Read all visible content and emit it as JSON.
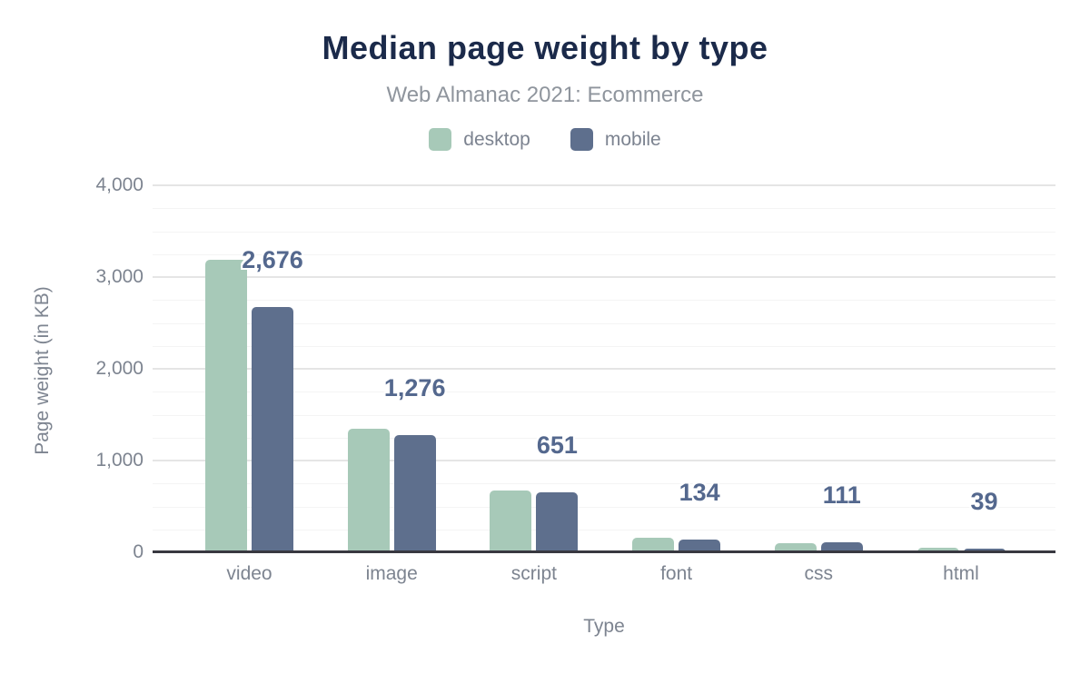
{
  "title": "Median page weight by type",
  "subtitle": "Web Almanac 2021: Ecommerce",
  "legend": {
    "items": [
      {
        "label": "desktop",
        "color": "#a7c9b8"
      },
      {
        "label": "mobile",
        "color": "#5e6f8d"
      }
    ]
  },
  "axes": {
    "x_title": "Type",
    "y_title": "Page weight (in KB)",
    "y_ticks": [
      "0",
      "1,000",
      "2,000",
      "3,000",
      "4,000"
    ]
  },
  "chart_data": {
    "type": "bar",
    "title": "Median page weight by type",
    "subtitle": "Web Almanac 2021: Ecommerce",
    "xlabel": "Type",
    "ylabel": "Page weight (in KB)",
    "categories": [
      "video",
      "image",
      "script",
      "font",
      "css",
      "html"
    ],
    "series": [
      {
        "name": "desktop",
        "color": "#a7c9b8",
        "values": [
          3190,
          1350,
          675,
          156,
          101,
          48
        ]
      },
      {
        "name": "mobile",
        "color": "#5e6f8d",
        "values": [
          2676,
          1276,
          651,
          134,
          111,
          39
        ]
      }
    ],
    "data_labels": {
      "series": "mobile",
      "texts": [
        "2,676",
        "1,276",
        "651",
        "134",
        "111",
        "39"
      ],
      "color": "#54688e"
    },
    "ylim": [
      0,
      4000
    ],
    "y_major_interval": 1000,
    "y_minor_interval": 250,
    "grid": true,
    "legend_position": "top"
  },
  "colors": {
    "background": "#ffffff",
    "title": "#1b2a4a",
    "subtitle": "#8f959d",
    "axis_text": "#7d8490",
    "axis_line": "#383840",
    "grid_major": "#e5e5e5",
    "grid_minor": "#f4f4f4",
    "value_label": "#54688e"
  }
}
